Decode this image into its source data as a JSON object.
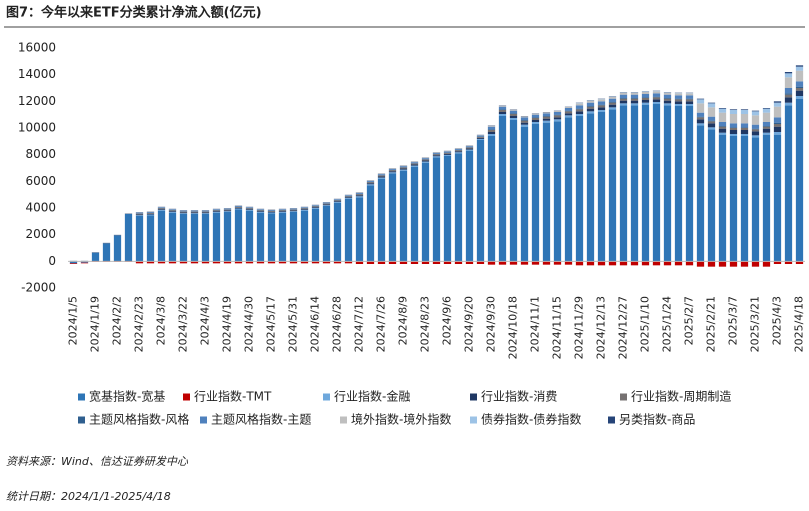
{
  "chart_data": {
    "type": "bar",
    "stacked": true,
    "title": "图7：今年以来ETF分类累计净流入额(亿元)",
    "source": "资料来源：Wind、信达证券研发中心",
    "date_note": "统计日期：2024/1/1-2025/4/18",
    "categories": [
      "2024/1/5",
      null,
      "2024/1/19",
      null,
      "2024/2/2",
      null,
      "2024/2/23",
      null,
      "2024/3/8",
      null,
      "2024/3/22",
      null,
      "2024/4/3",
      null,
      "2024/4/19",
      null,
      "2024/4/30",
      null,
      "2024/5/17",
      null,
      "2024/5/31",
      null,
      "2024/6/14",
      null,
      "2024/6/28",
      null,
      "2024/7/12",
      null,
      "2024/7/26",
      null,
      "2024/8/9",
      null,
      "2024/8/23",
      null,
      "2024/9/6",
      null,
      "2024/9/20",
      null,
      "2024/9/30",
      null,
      "2024/10/18",
      null,
      "2024/11/1",
      null,
      "2024/11/15",
      null,
      "2024/11/29",
      null,
      "2024/12/13",
      null,
      "2024/12/27",
      null,
      "2025/1/10",
      null,
      "2025/1/24",
      null,
      "2025/2/7",
      null,
      "2025/2/21",
      null,
      "2025/3/7",
      null,
      "2025/3/21",
      null,
      "2025/4/3",
      null,
      "2025/4/18"
    ],
    "series": [
      {
        "name": "宽基指数-宽基",
        "color": "#2e75b6",
        "values": [
          -150,
          -100,
          650,
          1350,
          1950,
          3550,
          3400,
          3450,
          3800,
          3650,
          3550,
          3550,
          3550,
          3650,
          3700,
          3900,
          3800,
          3650,
          3600,
          3650,
          3700,
          3800,
          3950,
          4150,
          4400,
          4700,
          4800,
          5700,
          6200,
          6600,
          6800,
          7100,
          7400,
          7800,
          7900,
          8100,
          8300,
          9100,
          9400,
          10900,
          10600,
          10100,
          10300,
          10400,
          10500,
          10800,
          10900,
          11100,
          11200,
          11400,
          11700,
          11700,
          11750,
          11800,
          11700,
          11650,
          11650,
          10200,
          9900,
          9500,
          9400,
          9400,
          9300,
          9500,
          9500,
          11700,
          12200
        ]
      },
      {
        "name": "行业指数-TMT",
        "color": "#c00000",
        "values": [
          -50,
          -50,
          -50,
          -50,
          -50,
          -50,
          -150,
          -150,
          -150,
          -150,
          -150,
          -150,
          -150,
          -150,
          -150,
          -150,
          -150,
          -150,
          -150,
          -150,
          -150,
          -150,
          -150,
          -150,
          -150,
          -150,
          -200,
          -200,
          -200,
          -200,
          -200,
          -200,
          -200,
          -200,
          -200,
          -200,
          -200,
          -200,
          -250,
          -250,
          -250,
          -250,
          -250,
          -250,
          -250,
          -250,
          -300,
          -300,
          -300,
          -300,
          -300,
          -300,
          -300,
          -300,
          -300,
          -300,
          -300,
          -400,
          -400,
          -400,
          -400,
          -400,
          -400,
          -400,
          -200,
          -200,
          -200
        ]
      },
      {
        "name": "行业指数-金融",
        "color": "#6fa8dc",
        "values": [
          0,
          0,
          0,
          0,
          0,
          0,
          60,
          60,
          60,
          60,
          60,
          60,
          60,
          60,
          60,
          60,
          60,
          60,
          60,
          60,
          60,
          60,
          60,
          60,
          60,
          60,
          80,
          80,
          80,
          80,
          80,
          80,
          80,
          80,
          80,
          80,
          80,
          80,
          150,
          150,
          150,
          150,
          150,
          150,
          150,
          150,
          150,
          150,
          150,
          150,
          150,
          150,
          150,
          150,
          150,
          150,
          150,
          150,
          150,
          150,
          150,
          150,
          150,
          150,
          200,
          200,
          200
        ]
      },
      {
        "name": "行业指数-消费",
        "color": "#1f3864",
        "values": [
          20,
          20,
          20,
          20,
          20,
          20,
          60,
          60,
          60,
          60,
          60,
          60,
          60,
          60,
          60,
          60,
          60,
          60,
          60,
          60,
          60,
          60,
          60,
          60,
          60,
          60,
          80,
          80,
          80,
          80,
          80,
          80,
          80,
          80,
          80,
          80,
          80,
          80,
          150,
          150,
          150,
          150,
          150,
          150,
          150,
          150,
          200,
          200,
          200,
          200,
          200,
          200,
          200,
          200,
          200,
          200,
          200,
          300,
          300,
          300,
          300,
          300,
          300,
          300,
          400,
          400,
          400
        ]
      },
      {
        "name": "行业指数-周期制造",
        "color": "#767171",
        "values": [
          10,
          10,
          10,
          10,
          10,
          10,
          60,
          60,
          60,
          60,
          60,
          60,
          60,
          60,
          60,
          60,
          60,
          60,
          60,
          60,
          60,
          60,
          60,
          60,
          60,
          60,
          80,
          80,
          80,
          80,
          80,
          80,
          80,
          80,
          80,
          80,
          80,
          80,
          150,
          150,
          150,
          150,
          150,
          150,
          150,
          150,
          150,
          150,
          150,
          150,
          150,
          150,
          150,
          150,
          150,
          150,
          150,
          150,
          150,
          150,
          150,
          150,
          150,
          150,
          200,
          200,
          200
        ]
      },
      {
        "name": "主题风格指数-风格",
        "color": "#2f5f8f",
        "values": [
          0,
          0,
          0,
          0,
          0,
          0,
          20,
          20,
          20,
          20,
          20,
          20,
          20,
          20,
          20,
          20,
          20,
          20,
          20,
          20,
          20,
          20,
          20,
          20,
          20,
          20,
          20,
          20,
          20,
          20,
          20,
          20,
          20,
          20,
          20,
          20,
          20,
          20,
          50,
          50,
          50,
          50,
          50,
          50,
          50,
          50,
          50,
          50,
          50,
          50,
          50,
          50,
          50,
          50,
          50,
          50,
          50,
          50,
          50,
          50,
          50,
          50,
          50,
          50,
          100,
          100,
          100
        ]
      },
      {
        "name": "主题风格指数-主题",
        "color": "#4f81bd",
        "values": [
          10,
          10,
          10,
          10,
          10,
          10,
          60,
          60,
          60,
          60,
          60,
          60,
          60,
          60,
          60,
          60,
          60,
          60,
          60,
          60,
          60,
          60,
          60,
          60,
          60,
          60,
          80,
          80,
          80,
          80,
          80,
          80,
          80,
          80,
          80,
          80,
          80,
          80,
          200,
          200,
          200,
          200,
          200,
          200,
          200,
          200,
          250,
          250,
          250,
          250,
          250,
          250,
          250,
          250,
          250,
          250,
          250,
          300,
          300,
          300,
          300,
          300,
          300,
          300,
          400,
          400,
          400
        ]
      },
      {
        "name": "境外指数-境外指数",
        "color": "#bfbfbf",
        "values": [
          10,
          10,
          10,
          10,
          10,
          10,
          30,
          30,
          30,
          30,
          30,
          30,
          30,
          30,
          30,
          30,
          30,
          30,
          30,
          30,
          30,
          30,
          30,
          30,
          30,
          30,
          50,
          50,
          50,
          50,
          50,
          50,
          50,
          50,
          50,
          50,
          50,
          50,
          80,
          80,
          80,
          80,
          80,
          80,
          80,
          80,
          150,
          150,
          150,
          150,
          150,
          150,
          150,
          150,
          150,
          150,
          150,
          700,
          700,
          700,
          700,
          700,
          700,
          700,
          800,
          800,
          800
        ]
      },
      {
        "name": "债券指数-债券指数",
        "color": "#9dc3e6",
        "values": [
          0,
          0,
          0,
          0,
          0,
          0,
          0,
          0,
          0,
          0,
          0,
          0,
          0,
          0,
          0,
          0,
          0,
          0,
          0,
          0,
          0,
          0,
          0,
          0,
          0,
          0,
          0,
          0,
          0,
          0,
          0,
          0,
          0,
          0,
          0,
          0,
          0,
          0,
          0,
          0,
          0,
          0,
          0,
          0,
          0,
          0,
          30,
          30,
          30,
          30,
          30,
          30,
          30,
          30,
          30,
          30,
          30,
          300,
          300,
          300,
          300,
          300,
          300,
          300,
          300,
          300,
          300
        ]
      },
      {
        "name": "另类指数-商品",
        "color": "#264478",
        "values": [
          0,
          0,
          0,
          0,
          0,
          0,
          10,
          10,
          10,
          10,
          10,
          10,
          10,
          10,
          10,
          10,
          10,
          10,
          10,
          10,
          10,
          10,
          10,
          10,
          10,
          10,
          10,
          10,
          10,
          10,
          10,
          10,
          10,
          10,
          10,
          10,
          10,
          10,
          20,
          20,
          20,
          20,
          20,
          20,
          20,
          20,
          20,
          20,
          20,
          20,
          20,
          20,
          20,
          20,
          20,
          20,
          20,
          50,
          50,
          50,
          50,
          50,
          50,
          50,
          100,
          100,
          100
        ]
      }
    ],
    "ylim": [
      -2000,
      16000
    ],
    "yticks": [
      -2000,
      0,
      2000,
      4000,
      6000,
      8000,
      10000,
      12000,
      14000,
      16000
    ],
    "grid": false
  }
}
